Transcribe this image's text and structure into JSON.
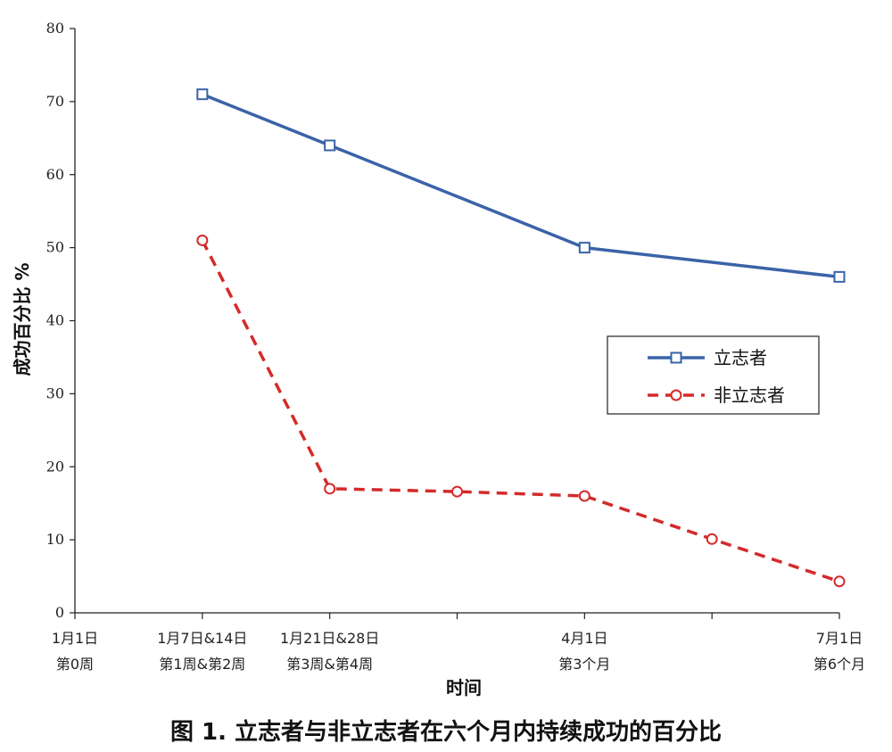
{
  "caption": "图 1. 立志者与非立志者在六个月内持续成功的百分比",
  "chart_data": {
    "type": "line",
    "ylabel": "成功百分比 %",
    "xlabel": "时间",
    "ylim": [
      0,
      80
    ],
    "yticks": [
      0,
      10,
      20,
      30,
      40,
      50,
      60,
      70,
      80
    ],
    "xlim": [
      0,
      6
    ],
    "x_ticks": [
      0,
      1,
      2,
      3,
      4,
      5,
      6
    ],
    "x_labels": [
      {
        "x": 0,
        "lines": [
          "1月1日",
          "第0周"
        ]
      },
      {
        "x": 1,
        "lines": [
          "1月7日&14日",
          "第1周&第2周"
        ]
      },
      {
        "x": 2,
        "lines": [
          "1月21日&28日",
          "第3周&第4周"
        ]
      },
      {
        "x": 4,
        "lines": [
          "4月1日",
          "第3个月"
        ]
      },
      {
        "x": 6,
        "lines": [
          "7月1日",
          "第6个月"
        ]
      }
    ],
    "legend_position": "right",
    "series": [
      {
        "name": "立志者",
        "color": "#3a63a8",
        "marker": "square",
        "dash": "solid",
        "points": [
          [
            1,
            71
          ],
          [
            2,
            64
          ],
          [
            4,
            50
          ],
          [
            6,
            46
          ]
        ],
        "smooth_through": [
          [
            3,
            57
          ],
          [
            5,
            48
          ]
        ]
      },
      {
        "name": "非立志者",
        "color": "#d42a2a",
        "marker": "circle",
        "dash": "dashed",
        "points": [
          [
            1,
            51
          ],
          [
            2,
            17
          ],
          [
            3,
            16.6
          ],
          [
            4,
            16
          ],
          [
            5,
            10.1
          ],
          [
            6,
            4.3
          ]
        ]
      }
    ]
  }
}
